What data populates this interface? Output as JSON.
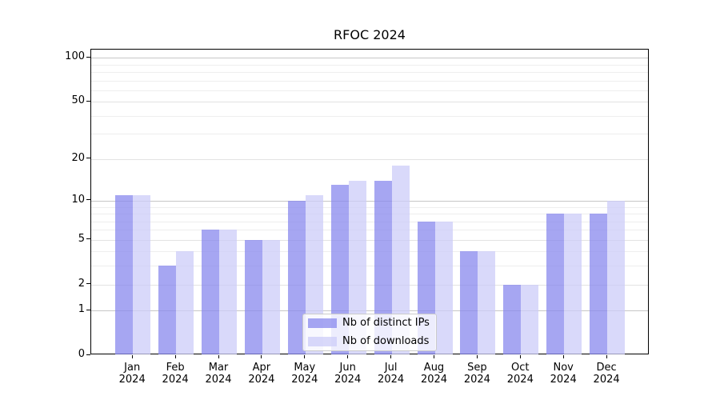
{
  "chart_data": {
    "type": "bar",
    "title": "RFOC 2024",
    "categories": [
      "Jan",
      "Feb",
      "Mar",
      "Apr",
      "May",
      "Jun",
      "Jul",
      "Aug",
      "Sep",
      "Oct",
      "Nov",
      "Dec"
    ],
    "year_label": "2024",
    "series": [
      {
        "key": "ips",
        "name": "Nb of distinct IPs",
        "color": "#8888ee",
        "alpha": 0.75,
        "values": [
          11,
          3,
          6,
          5,
          10,
          13,
          14,
          7,
          4,
          2,
          8,
          8
        ]
      },
      {
        "key": "downloads",
        "name": "Nb of downloads",
        "color": "#ccccf8",
        "alpha": 0.75,
        "values": [
          11,
          4,
          6,
          5,
          11,
          14,
          18,
          7,
          4,
          2,
          8,
          10
        ]
      }
    ],
    "yscale": "log1p",
    "yticks": [
      0,
      1,
      2,
      5,
      10,
      20,
      50,
      100
    ],
    "ylim": [
      0,
      113
    ],
    "xlabel": "",
    "ylabel": "",
    "grid": {
      "major": [
        1,
        10,
        100
      ],
      "labeled": [
        2,
        5,
        20,
        50
      ],
      "minor": [
        3,
        4,
        6,
        7,
        8,
        9,
        30,
        40,
        60,
        70,
        80,
        90
      ],
      "major_color": "#c6c6c6",
      "labeled_color": "#e3e3e3",
      "minor_color": "#eeeeee"
    },
    "legend_position": "lower center",
    "axis_color": "#000000",
    "text_color": "#000000"
  }
}
